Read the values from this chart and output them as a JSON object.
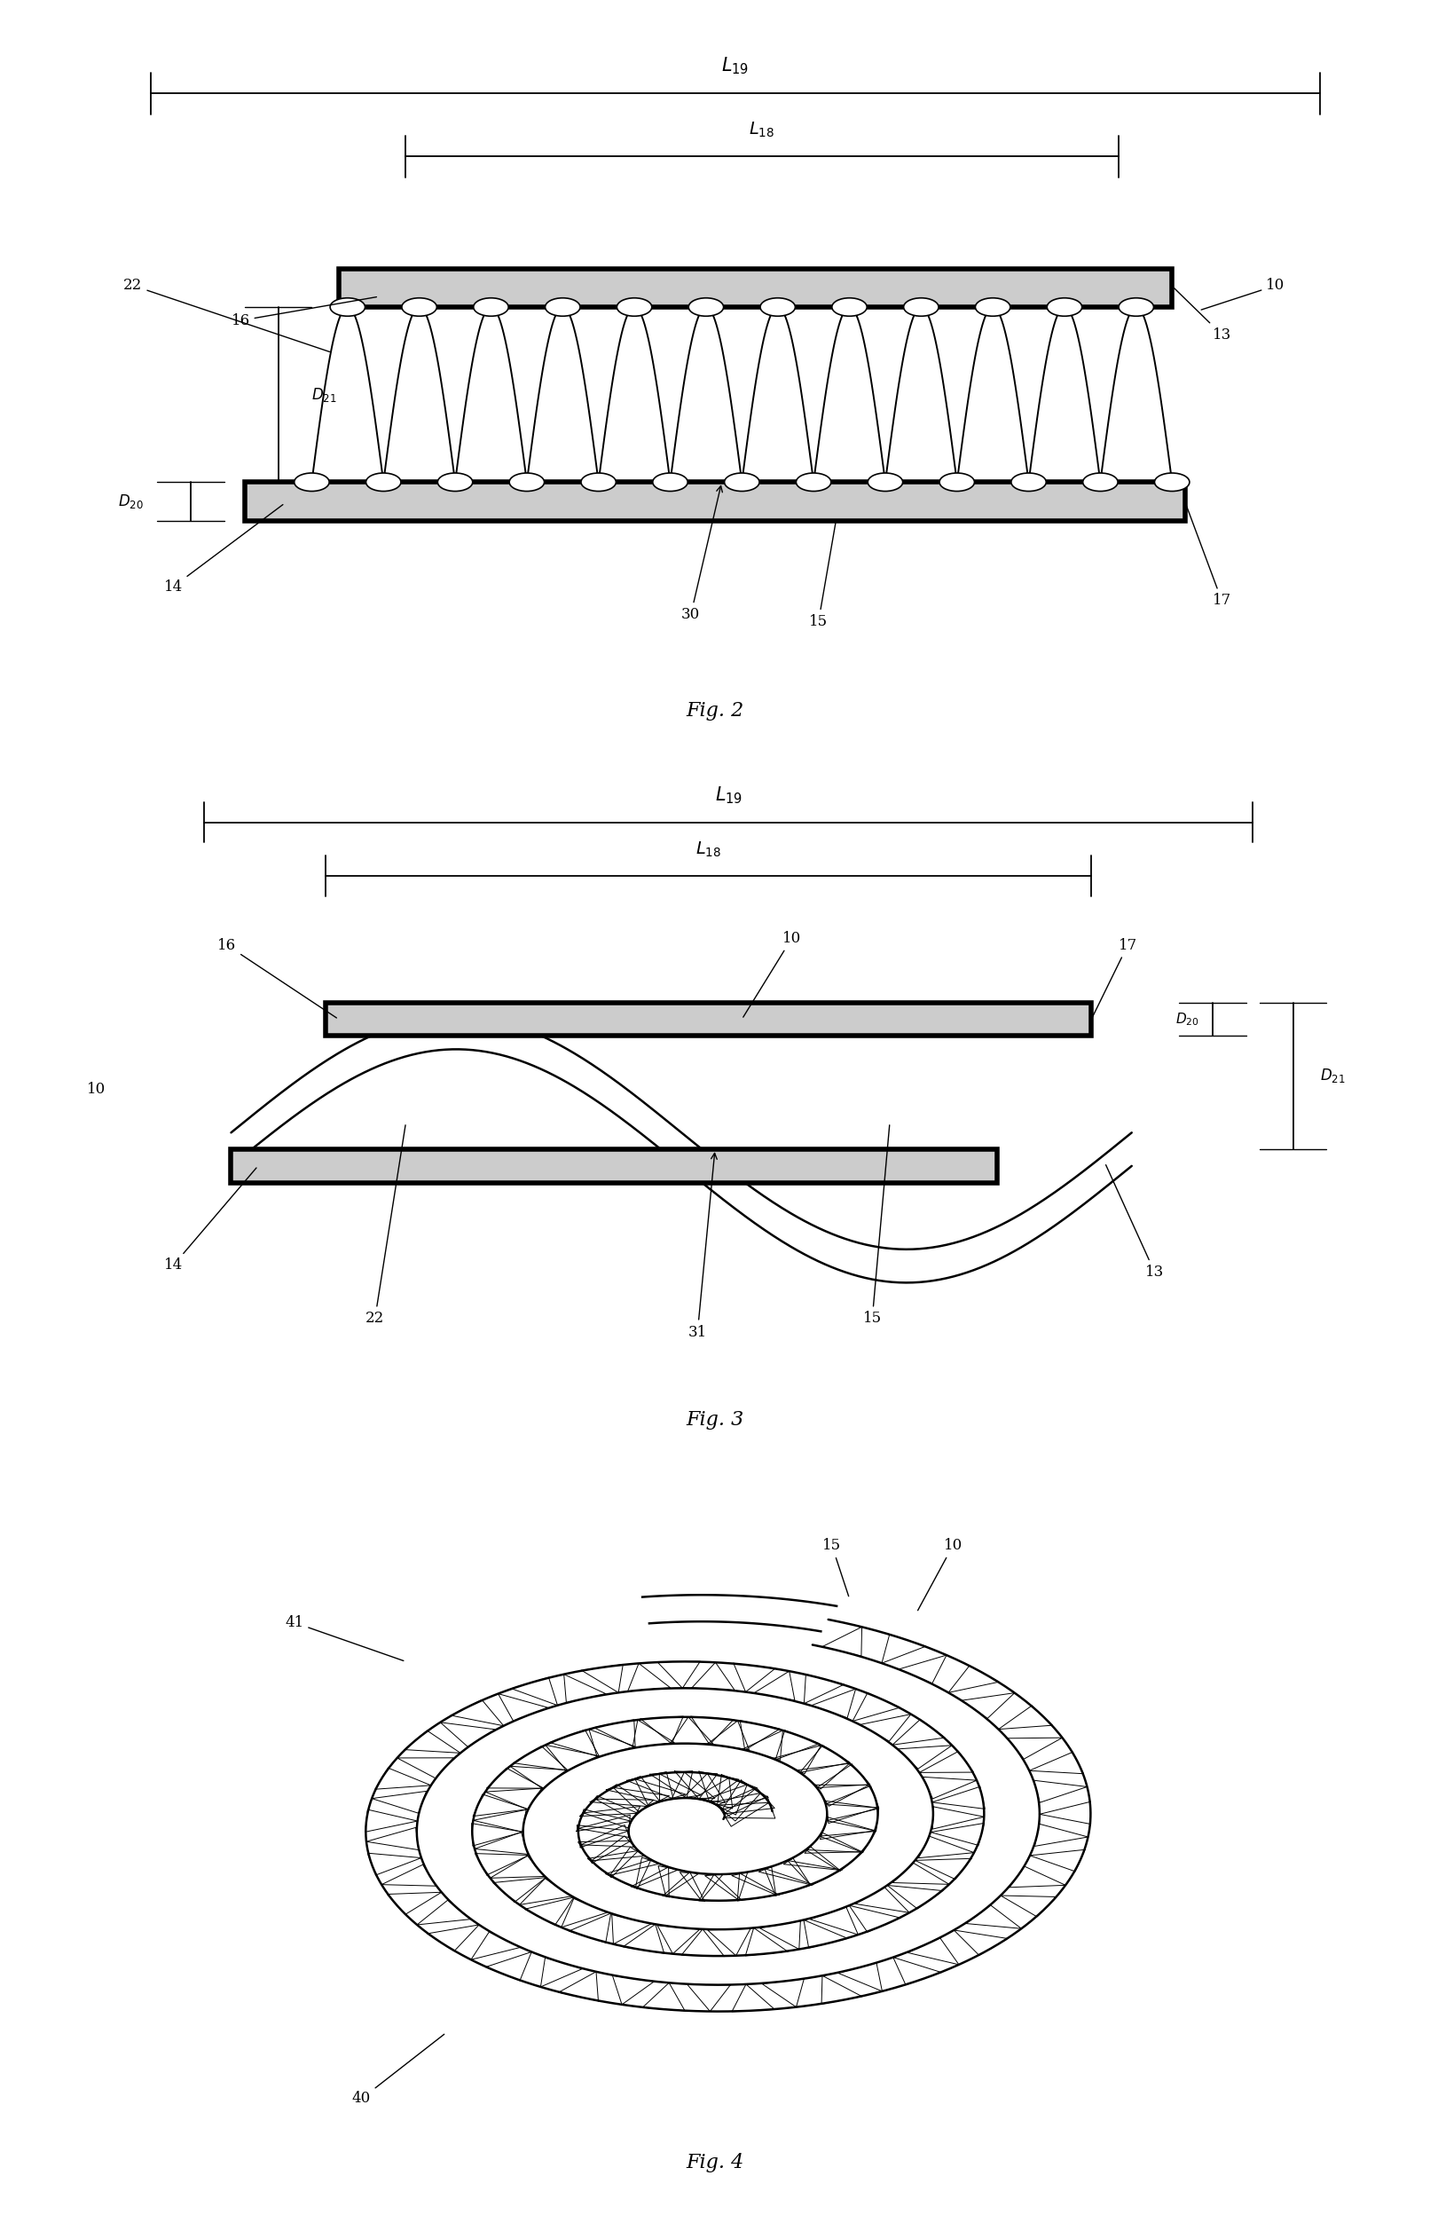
{
  "bg_color": "#ffffff",
  "line_color": "#000000",
  "lw": 1.8,
  "fs": 13,
  "fig2_title": "Fig. 2",
  "fig3_title": "Fig. 3",
  "fig4_title": "Fig. 4"
}
